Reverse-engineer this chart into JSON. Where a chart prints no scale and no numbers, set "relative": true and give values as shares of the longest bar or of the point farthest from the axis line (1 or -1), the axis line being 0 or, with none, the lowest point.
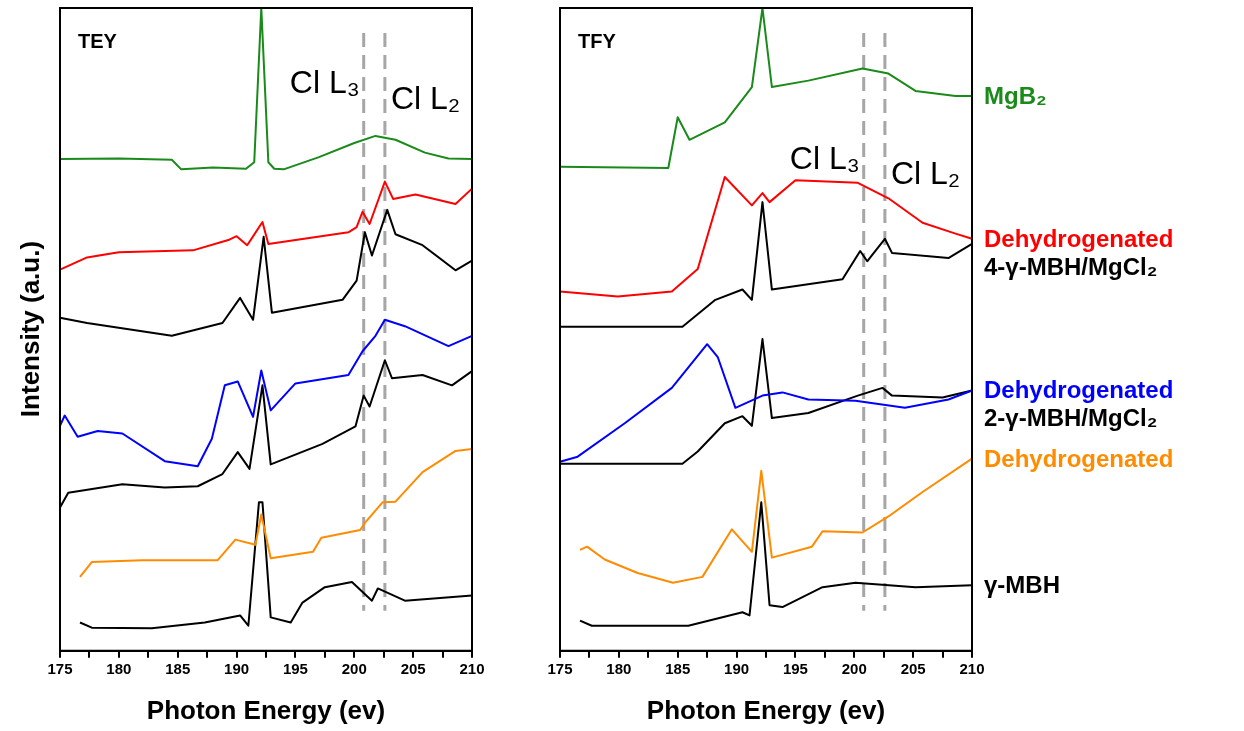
{
  "chart_data": [
    {
      "type": "line",
      "relative": true,
      "xlabel": "Photon Energy (ev)",
      "ylabel": "Intensity (a.u.)",
      "xlim": [
        175,
        210
      ],
      "xticks": [
        175,
        {
          "value": 177.5,
          "label": null
        },
        180,
        {
          "value": 182.5,
          "label": null
        },
        185,
        {
          "value": 187.5,
          "label": null
        },
        190,
        {
          "value": 192.5,
          "label": null
        },
        195,
        {
          "value": 197.5,
          "label": null
        },
        200,
        {
          "value": 202.5,
          "label": null
        },
        205,
        {
          "value": 207.5,
          "label": null
        },
        210
      ],
      "tick_labels": "x",
      "legend": false,
      "marker": "none",
      "line_style": "solid",
      "annotations": [
        "TEY"
      ],
      "ref_lines": [
        {
          "axis": "x",
          "value": 200.8,
          "label": "Cl L₃",
          "color": "#a6a6a6",
          "line_style": "dashed"
        },
        {
          "axis": "x",
          "value": 202.6,
          "label": "Cl L₂",
          "color": "#a6a6a6",
          "line_style": "dashed"
        }
      ],
      "series": [
        {
          "color": "#1a8a1a",
          "x": [
            175,
            180,
            184.5,
            185.3,
            188,
            190.8,
            191.5,
            192.1,
            192.7,
            193.2,
            194,
            197,
            200,
            201.8,
            203.5,
            206,
            208,
            210
          ],
          "values": [
            0.765,
            0.766,
            0.764,
            0.749,
            0.752,
            0.75,
            0.76,
            1,
            0.76,
            0.75,
            0.749,
            0.768,
            0.79,
            0.801,
            0.795,
            0.775,
            0.766,
            0.765
          ]
        },
        {
          "color": "#ff0000",
          "x": [
            175,
            177.3,
            180,
            186.3,
            189.3,
            190,
            190.9,
            192.2,
            192.7,
            199.5,
            200.2,
            200.7,
            201.3,
            202.6,
            203.3,
            205.2,
            208.6,
            210
          ],
          "values": [
            0.593,
            0.612,
            0.62,
            0.623,
            0.639,
            0.645,
            0.631,
            0.667,
            0.633,
            0.651,
            0.659,
            0.683,
            0.664,
            0.73,
            0.703,
            0.71,
            0.695,
            0.719
          ]
        },
        {
          "color": "#000000",
          "x": [
            175,
            177.3,
            184.5,
            188.8,
            190.3,
            191.4,
            192.3,
            193,
            199,
            200.2,
            200.9,
            201.5,
            202.8,
            203.5,
            205.8,
            208.6,
            210
          ],
          "values": [
            0.518,
            0.51,
            0.49,
            0.51,
            0.549,
            0.515,
            0.644,
            0.526,
            0.546,
            0.576,
            0.651,
            0.615,
            0.686,
            0.648,
            0.631,
            0.592,
            0.607
          ]
        },
        {
          "color": "#0000ff",
          "x": [
            175,
            175.4,
            176.5,
            178.2,
            180.3,
            183.9,
            186.7,
            187.9,
            189,
            190.1,
            191.4,
            192.1,
            192.9,
            195,
            199.5,
            200.7,
            201.8,
            202.6,
            204.3,
            208,
            210
          ],
          "values": [
            0.35,
            0.366,
            0.333,
            0.342,
            0.338,
            0.295,
            0.287,
            0.33,
            0.413,
            0.419,
            0.364,
            0.436,
            0.374,
            0.416,
            0.429,
            0.466,
            0.49,
            0.515,
            0.505,
            0.474,
            0.49
          ]
        },
        {
          "color": "#000000",
          "x": [
            175,
            175.7,
            180.3,
            183.9,
            186.7,
            188.8,
            190.1,
            191.1,
            192.2,
            192.9,
            197.3,
            200.1,
            200.8,
            201.3,
            202.6,
            203.2,
            205.8,
            208.3,
            210
          ],
          "values": [
            0.223,
            0.246,
            0.259,
            0.254,
            0.256,
            0.275,
            0.309,
            0.283,
            0.413,
            0.29,
            0.322,
            0.349,
            0.397,
            0.38,
            0.452,
            0.424,
            0.429,
            0.413,
            0.435
          ]
        },
        {
          "color": "#ff8c00",
          "x": [
            176.7,
            177.7,
            182,
            188.4,
            189.9,
            191.6,
            192.1,
            192.9,
            196.5,
            197.2,
            200.5,
            200.9,
            202.4,
            203.5,
            205.8,
            208.6,
            210
          ],
          "values": [
            0.115,
            0.138,
            0.141,
            0.141,
            0.173,
            0.165,
            0.212,
            0.144,
            0.154,
            0.176,
            0.188,
            0.199,
            0.231,
            0.232,
            0.278,
            0.311,
            0.314
          ]
        },
        {
          "color": "#000000",
          "x": [
            176.7,
            177.7,
            182.8,
            187.3,
            190.3,
            191,
            191.9,
            192.2,
            192.9,
            194.6,
            195.6,
            197.5,
            199.8,
            201.5,
            202,
            204.3,
            210
          ],
          "values": [
            0.044,
            0.036,
            0.035,
            0.044,
            0.055,
            0.039,
            0.231,
            0.231,
            0.052,
            0.044,
            0.075,
            0.099,
            0.107,
            0.078,
            0.097,
            0.078,
            0.086
          ]
        }
      ]
    },
    {
      "type": "line",
      "relative": true,
      "xlabel": "Photon Energy (ev)",
      "xlim": [
        175,
        210
      ],
      "xticks": [
        175,
        {
          "value": 177.5,
          "label": null
        },
        180,
        {
          "value": 182.5,
          "label": null
        },
        185,
        {
          "value": 187.5,
          "label": null
        },
        190,
        {
          "value": 192.5,
          "label": null
        },
        195,
        {
          "value": 197.5,
          "label": null
        },
        200,
        {
          "value": 202.5,
          "label": null
        },
        205,
        {
          "value": 207.5,
          "label": null
        },
        210
      ],
      "tick_labels": "x",
      "legend": false,
      "marker": "none",
      "line_style": "solid",
      "annotations": [
        "TFY"
      ],
      "ref_lines": [
        {
          "axis": "x",
          "value": 200.8,
          "label": "Cl L₃",
          "color": "#a6a6a6",
          "line_style": "dashed"
        },
        {
          "axis": "x",
          "value": 202.6,
          "label": "Cl L₂",
          "color": "#a6a6a6",
          "line_style": "dashed"
        }
      ],
      "series": [
        {
          "name": "MgB₂",
          "color": "#1a8a1a",
          "x": [
            175,
            184.2,
            185,
            186,
            189,
            191.3,
            192.2,
            193,
            196.1,
            200.7,
            202.9,
            205.2,
            208.6,
            210
          ],
          "values": [
            0.753,
            0.751,
            0.83,
            0.795,
            0.822,
            0.877,
            1,
            0.877,
            0.887,
            0.906,
            0.898,
            0.871,
            0.863,
            0.863
          ]
        },
        {
          "name": "Dehydrogenated",
          "color": "#ff0000",
          "x": [
            175,
            179.9,
            184.5,
            186.7,
            189,
            191.3,
            192.2,
            192.8,
            195,
            200.3,
            202.9,
            205.8,
            208.6,
            210
          ],
          "values": [
            0.559,
            0.551,
            0.559,
            0.594,
            0.737,
            0.693,
            0.712,
            0.698,
            0.732,
            0.728,
            0.704,
            0.666,
            0.649,
            0.641
          ]
        },
        {
          "name": "4-γ-MBH/MgCl₂",
          "color": "#000000",
          "x": [
            175,
            185.4,
            188.2,
            190.5,
            191.3,
            192.2,
            193,
            199,
            200.5,
            201.1,
            202.6,
            203.2,
            208,
            210
          ],
          "values": [
            0.504,
            0.504,
            0.546,
            0.562,
            0.546,
            0.698,
            0.562,
            0.578,
            0.622,
            0.606,
            0.641,
            0.619,
            0.611,
            0.633
          ]
        },
        {
          "name": "Dehydrogenated",
          "color": "#0000ff",
          "x": [
            175,
            176.5,
            180.5,
            184.5,
            187.5,
            188.4,
            189.9,
            192.2,
            193.9,
            196.1,
            200.1,
            204.3,
            208,
            210
          ],
          "values": [
            0.294,
            0.302,
            0.354,
            0.409,
            0.477,
            0.457,
            0.378,
            0.397,
            0.402,
            0.391,
            0.389,
            0.378,
            0.391,
            0.405
          ]
        },
        {
          "name": "2-γ-MBH/MgCl₂",
          "color": "#000000",
          "x": [
            175,
            185.4,
            186.7,
            189,
            190.5,
            191.3,
            192.2,
            193,
            196.1,
            200.3,
            202.4,
            203.2,
            207.5,
            210
          ],
          "values": [
            0.291,
            0.291,
            0.31,
            0.354,
            0.365,
            0.35,
            0.485,
            0.362,
            0.37,
            0.397,
            0.409,
            0.397,
            0.394,
            0.405
          ]
        },
        {
          "name": "Dehydrogenated",
          "color": "#ff8c00",
          "x": [
            176.7,
            177.3,
            178.8,
            181.6,
            184.6,
            187.1,
            189.6,
            191.3,
            192.1,
            193,
            196.4,
            197.3,
            200.7,
            202.9,
            205.8,
            210
          ],
          "values": [
            0.157,
            0.162,
            0.142,
            0.121,
            0.106,
            0.115,
            0.189,
            0.154,
            0.28,
            0.145,
            0.162,
            0.186,
            0.184,
            0.209,
            0.247,
            0.299
          ]
        },
        {
          "name": "γ-MBH",
          "color": "#000000",
          "x": [
            176.7,
            177.7,
            185.9,
            190.5,
            191.1,
            192.1,
            192.8,
            193.9,
            197.3,
            200.1,
            205.2,
            210
          ],
          "values": [
            0.047,
            0.039,
            0.039,
            0.06,
            0.055,
            0.231,
            0.071,
            0.068,
            0.099,
            0.106,
            0.099,
            0.102
          ]
        }
      ]
    }
  ]
}
